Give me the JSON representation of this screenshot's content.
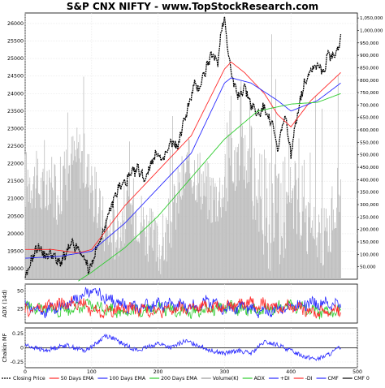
{
  "title": "S&P CNX NIFTY - www.TopStockResearch.com",
  "chart_data": [
    {
      "panel": "price",
      "type": "line",
      "x_ticks": [
        "0",
        "100",
        "200",
        "300",
        "400"
      ],
      "xlim": [
        0,
        500
      ],
      "ylim": [
        18700,
        26300
      ],
      "y_ticks": [
        "19000",
        "19500",
        "20000",
        "20500",
        "21000",
        "21500",
        "22000",
        "22500",
        "23000",
        "23500",
        "24000",
        "24500",
        "25000",
        "25500",
        "26000"
      ],
      "y2_ticks": [
        "50,000",
        "100,000",
        "150,000",
        "200,000",
        "250,000",
        "300,000",
        "350,000",
        "400,000",
        "450,000",
        "500,000",
        "550,000",
        "600,000",
        "650,000",
        "700,000",
        "750,000",
        "800,000",
        "850,000",
        "900,000",
        "950,000",
        "1,000,000",
        "1,050,000"
      ],
      "y2lim": [
        0,
        1070000
      ],
      "colors": {
        "close": "#000000",
        "ema50": "#ff2a2a",
        "ema100": "#2a2aff",
        "ema200": "#2ecc2e",
        "volume": "#bdbdbd"
      },
      "series": [
        {
          "name": "Closing Price",
          "anchors": [
            [
              0,
              18650
            ],
            [
              10,
              19300
            ],
            [
              20,
              19650
            ],
            [
              30,
              19350
            ],
            [
              40,
              19450
            ],
            [
              50,
              19150
            ],
            [
              60,
              19350
            ],
            [
              70,
              19700
            ],
            [
              80,
              19550
            ],
            [
              90,
              19250
            ],
            [
              95,
              19000
            ],
            [
              100,
              19100
            ],
            [
              110,
              19700
            ],
            [
              120,
              20200
            ],
            [
              130,
              20800
            ],
            [
              140,
              21300
            ],
            [
              150,
              21450
            ],
            [
              160,
              21700
            ],
            [
              170,
              21850
            ],
            [
              180,
              21550
            ],
            [
              190,
              22050
            ],
            [
              200,
              22350
            ],
            [
              205,
              22000
            ],
            [
              210,
              22200
            ],
            [
              220,
              22600
            ],
            [
              230,
              22500
            ],
            [
              240,
              23300
            ],
            [
              250,
              23900
            ],
            [
              255,
              24300
            ],
            [
              260,
              24100
            ],
            [
              270,
              24600
            ],
            [
              280,
              25100
            ],
            [
              290,
              24900
            ],
            [
              295,
              25800
            ],
            [
              300,
              26200
            ],
            [
              305,
              25300
            ],
            [
              310,
              24600
            ],
            [
              320,
              23900
            ],
            [
              330,
              24200
            ],
            [
              340,
              23700
            ],
            [
              350,
              23400
            ],
            [
              360,
              23600
            ],
            [
              370,
              23200
            ],
            [
              375,
              22900
            ],
            [
              380,
              22300
            ],
            [
              385,
              22900
            ],
            [
              390,
              23300
            ],
            [
              395,
              23000
            ],
            [
              400,
              22200
            ],
            [
              405,
              22900
            ],
            [
              410,
              23500
            ],
            [
              420,
              24300
            ],
            [
              430,
              24700
            ],
            [
              440,
              24850
            ],
            [
              450,
              24600
            ],
            [
              455,
              25200
            ],
            [
              460,
              25000
            ],
            [
              470,
              25150
            ],
            [
              475,
              25600
            ]
          ]
        },
        {
          "name": "50 Days EMA",
          "anchors": [
            [
              0,
              19550
            ],
            [
              40,
              19550
            ],
            [
              80,
              19450
            ],
            [
              100,
              19550
            ],
            [
              150,
              20800
            ],
            [
              200,
              21800
            ],
            [
              250,
              22800
            ],
            [
              300,
              24700
            ],
            [
              310,
              24900
            ],
            [
              330,
              24600
            ],
            [
              360,
              24000
            ],
            [
              380,
              23400
            ],
            [
              400,
              23050
            ],
            [
              430,
              23800
            ],
            [
              475,
              24600
            ]
          ]
        },
        {
          "name": "100 Days EMA",
          "anchors": [
            [
              0,
              19300
            ],
            [
              50,
              19350
            ],
            [
              100,
              19500
            ],
            [
              150,
              20300
            ],
            [
              200,
              21300
            ],
            [
              250,
              22300
            ],
            [
              300,
              24300
            ],
            [
              310,
              24450
            ],
            [
              340,
              24300
            ],
            [
              380,
              23800
            ],
            [
              400,
              23500
            ],
            [
              440,
              23800
            ],
            [
              475,
              24300
            ]
          ]
        },
        {
          "name": "200 Days EMA",
          "anchors": [
            [
              80,
              18650
            ],
            [
              100,
              18900
            ],
            [
              150,
              19600
            ],
            [
              200,
              20500
            ],
            [
              250,
              21600
            ],
            [
              300,
              22700
            ],
            [
              350,
              23500
            ],
            [
              400,
              23700
            ],
            [
              440,
              23750
            ],
            [
              475,
              24000
            ]
          ]
        }
      ]
    },
    {
      "panel": "adx",
      "type": "line",
      "ylabel": "ADX (14d)",
      "ylim": [
        5,
        60
      ],
      "y_ticks": [
        "50",
        "25"
      ],
      "x_ticks": [
        "0",
        "100",
        "200",
        "300",
        "400"
      ],
      "colors": {
        "adx": "#2ecc2e",
        "pdi": "#2a2aff",
        "mdi": "#ff2a2a"
      },
      "series": [
        {
          "name": "ADX",
          "anchors": [
            [
              0,
              28
            ],
            [
              50,
              22
            ],
            [
              100,
              30
            ],
            [
              150,
              20
            ],
            [
              200,
              26
            ],
            [
              250,
              20
            ],
            [
              300,
              28
            ],
            [
              350,
              22
            ],
            [
              400,
              30
            ],
            [
              450,
              18
            ],
            [
              475,
              24
            ]
          ]
        },
        {
          "name": "+DI",
          "anchors": [
            [
              0,
              30
            ],
            [
              30,
              22
            ],
            [
              60,
              30
            ],
            [
              100,
              50
            ],
            [
              130,
              38
            ],
            [
              160,
              26
            ],
            [
              200,
              32
            ],
            [
              250,
              28
            ],
            [
              280,
              36
            ],
            [
              300,
              24
            ],
            [
              330,
              28
            ],
            [
              360,
              20
            ],
            [
              400,
              30
            ],
            [
              430,
              34
            ],
            [
              475,
              30
            ]
          ]
        },
        {
          "name": "-DI",
          "anchors": [
            [
              0,
              22
            ],
            [
              40,
              30
            ],
            [
              80,
              34
            ],
            [
              110,
              20
            ],
            [
              150,
              26
            ],
            [
              200,
              22
            ],
            [
              250,
              26
            ],
            [
              300,
              30
            ],
            [
              340,
              34
            ],
            [
              380,
              26
            ],
            [
              400,
              30
            ],
            [
              440,
              20
            ],
            [
              475,
              24
            ]
          ]
        }
      ]
    },
    {
      "panel": "cmf",
      "type": "line",
      "ylabel": "Chaikin MF",
      "ylim": [
        -0.35,
        0.35
      ],
      "y_ticks": [
        "0.25",
        "0",
        "-0.25"
      ],
      "x_ticks": [
        "0",
        "100",
        "200",
        "300",
        "400",
        "500"
      ],
      "colors": {
        "cmf": "#2a2aff",
        "zero": "#000000"
      },
      "series": [
        {
          "name": "CMF",
          "anchors": [
            [
              0,
              0.05
            ],
            [
              30,
              -0.05
            ],
            [
              60,
              0.05
            ],
            [
              90,
              -0.05
            ],
            [
              110,
              0.1
            ],
            [
              120,
              0.22
            ],
            [
              130,
              0.18
            ],
            [
              150,
              0.05
            ],
            [
              170,
              -0.05
            ],
            [
              200,
              0.08
            ],
            [
              220,
              0.0
            ],
            [
              240,
              0.12
            ],
            [
              260,
              0.05
            ],
            [
              280,
              -0.05
            ],
            [
              300,
              -0.1
            ],
            [
              320,
              -0.05
            ],
            [
              340,
              -0.1
            ],
            [
              360,
              0.1
            ],
            [
              380,
              0.05
            ],
            [
              400,
              -0.05
            ],
            [
              420,
              -0.15
            ],
            [
              440,
              -0.2
            ],
            [
              460,
              -0.1
            ],
            [
              475,
              0.02
            ]
          ]
        }
      ]
    }
  ],
  "legend": {
    "items": [
      {
        "label": "Closing Price",
        "color": "#000000",
        "dash": true
      },
      {
        "label": "50 Days EMA",
        "color": "#ff2a2a"
      },
      {
        "label": "100 Days EMA",
        "color": "#2a2aff"
      },
      {
        "label": "200 Days EMA",
        "color": "#2ecc2e"
      },
      {
        "label": "Volume(K)",
        "color": "#999999"
      },
      {
        "label": "ADX",
        "color": "#2ecc2e"
      },
      {
        "label": "+DI",
        "color": "#2a2aff"
      },
      {
        "label": "-DI",
        "color": "#ff2a2a"
      },
      {
        "label": "CMF",
        "color": "#2a2aff"
      },
      {
        "label": "CMF 0",
        "color": "#000000"
      }
    ]
  }
}
